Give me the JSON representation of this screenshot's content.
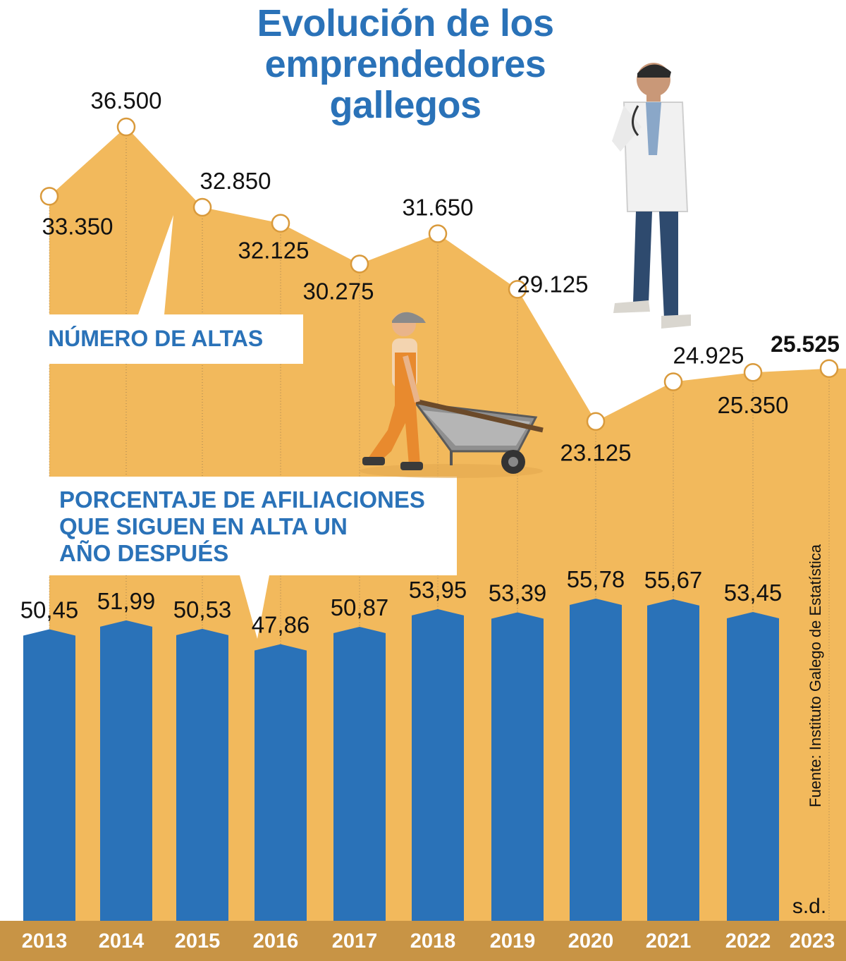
{
  "title": "Evolución de los\nemprendedores\ngallegos",
  "source": "Fuente: Instituto Galego de Estatística",
  "labels": {
    "altas": "NÚMERO DE ALTAS",
    "porcentaje": "PORCENTAJE DE AFILIACIONES\nQUE SIGUEN EN ALTA UN\nAÑO DESPUÉS",
    "no_data": "s.d."
  },
  "colors": {
    "area": "#f2b95c",
    "bars": "#2a72b8",
    "axis_band": "#c89445",
    "title": "#2a72b8"
  },
  "illustrations": [
    "worker-with-wheelbarrow",
    "doctor-figure"
  ],
  "chart_data": [
    {
      "type": "area",
      "series": [
        {
          "name": "NÚMERO DE ALTAS",
          "x": [
            "2013",
            "2014",
            "2015",
            "2016",
            "2017",
            "2018",
            "2019",
            "2020",
            "2021",
            "2022",
            "2023"
          ],
          "values": [
            33350,
            36500,
            32850,
            32125,
            30275,
            31650,
            29125,
            23125,
            24925,
            25350,
            25525
          ],
          "labels": [
            "33.350",
            "36.500",
            "32.850",
            "32.125",
            "30.275",
            "31.650",
            "29.125",
            "23.125",
            "24.925",
            "25.350",
            "25.525"
          ]
        }
      ]
    },
    {
      "type": "bar",
      "categories": [
        "2013",
        "2014",
        "2015",
        "2016",
        "2017",
        "2018",
        "2019",
        "2020",
        "2021",
        "2022",
        "2023"
      ],
      "series": [
        {
          "name": "PORCENTAJE DE AFILIACIONES QUE SIGUEN EN ALTA UN AÑO DESPUÉS",
          "values": [
            50.45,
            51.99,
            50.53,
            47.86,
            50.87,
            53.95,
            53.39,
            55.78,
            55.67,
            53.45,
            null
          ],
          "labels": [
            "50,45",
            "51,99",
            "50,53",
            "47,86",
            "50,87",
            "53,95",
            "53,39",
            "55,78",
            "55,67",
            "53,45",
            "s.d."
          ]
        }
      ]
    }
  ]
}
